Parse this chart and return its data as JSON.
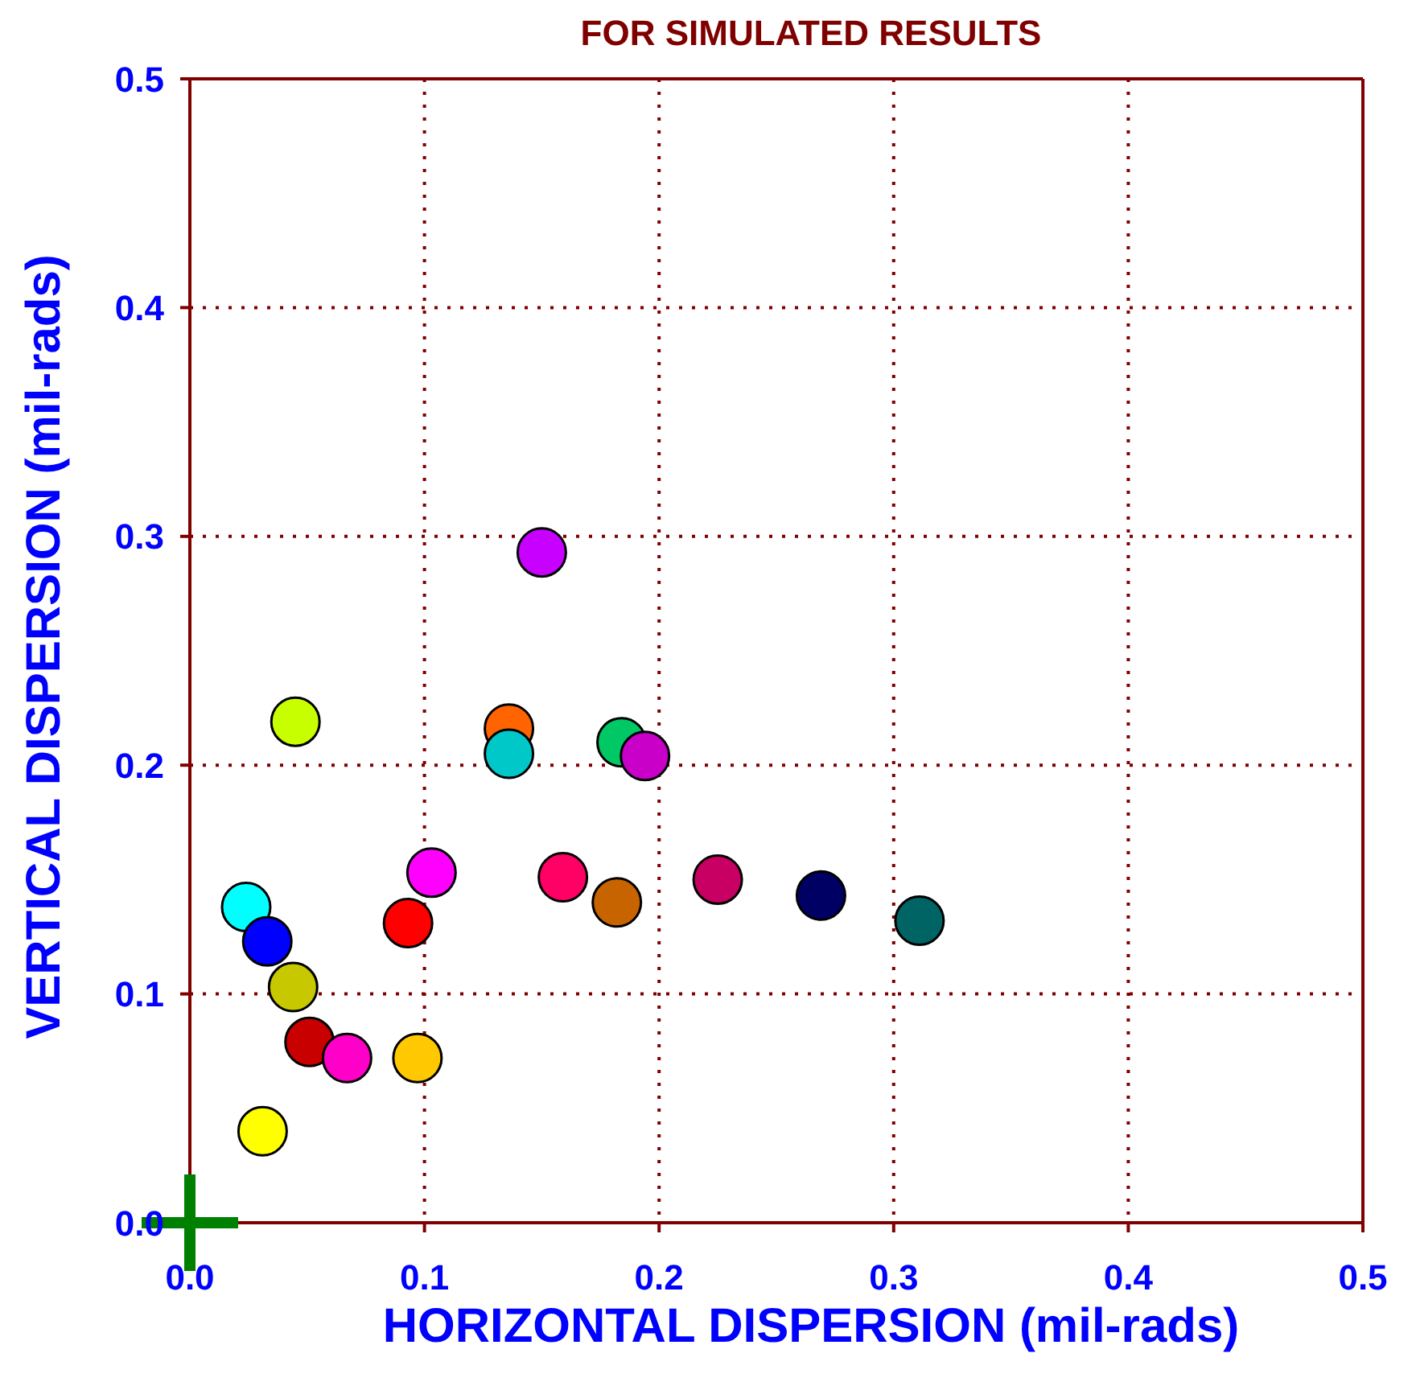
{
  "chart_data": {
    "type": "scatter",
    "title": "FOR SIMULATED RESULTS",
    "xlabel": "HORIZONTAL DISPERSION (mil-rads)",
    "ylabel": "VERTICAL DISPERSION (mil-rads)",
    "xlim": [
      0,
      0.5
    ],
    "ylim": [
      0,
      0.5
    ],
    "xticks": [
      {
        "value": 0,
        "label": "0.0"
      },
      0.1,
      0.2,
      0.3,
      0.4,
      0.5
    ],
    "yticks": [
      {
        "value": 0,
        "label": "0.0"
      },
      0.1,
      0.2,
      0.3,
      0.4,
      0.5
    ],
    "grid": true,
    "series": [
      {
        "marker": "circle",
        "x": [
          0.024,
          0.033,
          0.044,
          0.045,
          0.051,
          0.031,
          0.067,
          0.097,
          0.093,
          0.103,
          0.136,
          0.136,
          0.15,
          0.159,
          0.184,
          0.194,
          0.182,
          0.225,
          0.269,
          0.311
        ],
        "values": [
          0.138,
          0.123,
          0.103,
          0.219,
          0.079,
          0.04,
          0.072,
          0.072,
          0.131,
          0.153,
          0.216,
          0.205,
          0.293,
          0.151,
          0.21,
          0.204,
          0.14,
          0.15,
          0.143,
          0.132
        ],
        "colors": [
          "#00ffff",
          "#0000ff",
          "#c8c800",
          "#c8ff00",
          "#c80000",
          "#ffff00",
          "#ff00c8",
          "#ffc800",
          "#ff0000",
          "#ff00ff",
          "#ff6400",
          "#00c8c8",
          "#c800ff",
          "#ff0064",
          "#00c864",
          "#c800c8",
          "#c86400",
          "#c80064",
          "#000064",
          "#006464"
        ]
      },
      {
        "marker": "cross",
        "color": "#008000",
        "x": [
          0
        ],
        "values": [
          0
        ]
      }
    ]
  }
}
